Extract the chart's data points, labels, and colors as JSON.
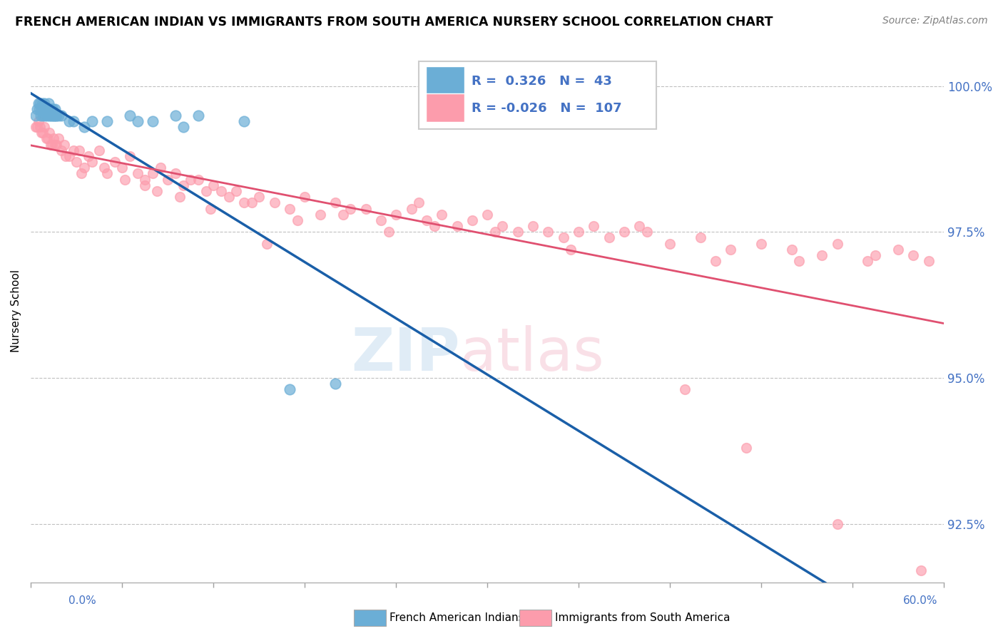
{
  "title": "FRENCH AMERICAN INDIAN VS IMMIGRANTS FROM SOUTH AMERICA NURSERY SCHOOL CORRELATION CHART",
  "source": "Source: ZipAtlas.com",
  "ylabel": "Nursery School",
  "xmin": 0.0,
  "xmax": 60.0,
  "ymin": 91.5,
  "ymax": 100.8,
  "yticks": [
    92.5,
    95.0,
    97.5,
    100.0
  ],
  "ytick_labels": [
    "92.5%",
    "95.0%",
    "97.5%",
    "100.0%"
  ],
  "blue_R": 0.326,
  "blue_N": 43,
  "pink_R": -0.026,
  "pink_N": 107,
  "blue_color": "#6baed6",
  "pink_color": "#fc9cac",
  "blue_line_color": "#1a5fa8",
  "pink_line_color": "#e05070",
  "legend_label_blue": "French American Indians",
  "legend_label_pink": "Immigrants from South America",
  "blue_scatter_x": [
    0.3,
    0.4,
    0.5,
    0.55,
    0.6,
    0.65,
    0.7,
    0.75,
    0.8,
    0.85,
    0.9,
    0.95,
    1.0,
    1.05,
    1.1,
    1.15,
    1.2,
    1.25,
    1.3,
    1.35,
    1.4,
    1.45,
    1.5,
    1.55,
    1.6,
    1.65,
    1.7,
    2.5,
    3.5,
    5.0,
    6.5,
    8.0,
    11.0,
    14.0,
    2.0,
    4.0,
    7.0,
    10.0,
    17.0,
    20.0,
    2.8,
    1.8,
    9.5
  ],
  "blue_scatter_y": [
    99.5,
    99.6,
    99.7,
    99.6,
    99.7,
    99.5,
    99.6,
    99.7,
    99.5,
    99.6,
    99.7,
    99.5,
    99.6,
    99.5,
    99.6,
    99.7,
    99.5,
    99.6,
    99.5,
    99.6,
    99.5,
    99.6,
    99.5,
    99.5,
    99.6,
    99.5,
    99.5,
    99.4,
    99.3,
    99.4,
    99.5,
    99.4,
    99.5,
    99.4,
    99.5,
    99.4,
    99.4,
    99.3,
    94.8,
    94.9,
    99.4,
    99.5,
    99.5
  ],
  "pink_scatter_x": [
    0.3,
    0.5,
    0.7,
    0.9,
    1.0,
    1.2,
    1.4,
    1.5,
    1.7,
    1.8,
    2.0,
    2.2,
    2.5,
    2.8,
    3.0,
    3.2,
    3.5,
    3.8,
    4.0,
    4.5,
    5.0,
    5.5,
    6.0,
    6.5,
    7.0,
    7.5,
    8.0,
    8.5,
    9.0,
    9.5,
    10.0,
    10.5,
    11.0,
    11.5,
    12.0,
    12.5,
    13.0,
    13.5,
    14.0,
    15.0,
    16.0,
    17.0,
    18.0,
    19.0,
    20.0,
    21.0,
    22.0,
    23.0,
    24.0,
    25.0,
    26.0,
    27.0,
    28.0,
    29.0,
    30.0,
    31.0,
    32.0,
    33.0,
    34.0,
    35.0,
    36.0,
    37.0,
    38.0,
    39.0,
    40.0,
    42.0,
    44.0,
    46.0,
    48.0,
    50.0,
    52.0,
    53.0,
    55.0,
    57.0,
    58.0,
    59.0,
    0.4,
    0.6,
    0.8,
    1.1,
    1.3,
    1.6,
    2.3,
    3.3,
    4.8,
    6.2,
    8.3,
    9.8,
    11.8,
    14.5,
    17.5,
    20.5,
    23.5,
    26.5,
    30.5,
    35.5,
    40.5,
    45.0,
    50.5,
    55.5,
    43.0,
    47.0,
    7.5,
    15.5,
    25.5,
    53.0,
    58.5
  ],
  "pink_scatter_y": [
    99.3,
    99.4,
    99.2,
    99.3,
    99.1,
    99.2,
    99.0,
    99.1,
    99.0,
    99.1,
    98.9,
    99.0,
    98.8,
    98.9,
    98.7,
    98.9,
    98.6,
    98.8,
    98.7,
    98.9,
    98.5,
    98.7,
    98.6,
    98.8,
    98.5,
    98.4,
    98.5,
    98.6,
    98.4,
    98.5,
    98.3,
    98.4,
    98.4,
    98.2,
    98.3,
    98.2,
    98.1,
    98.2,
    98.0,
    98.1,
    98.0,
    97.9,
    98.1,
    97.8,
    98.0,
    97.9,
    97.9,
    97.7,
    97.8,
    97.9,
    97.7,
    97.8,
    97.6,
    97.7,
    97.8,
    97.6,
    97.5,
    97.6,
    97.5,
    97.4,
    97.5,
    97.6,
    97.4,
    97.5,
    97.6,
    97.3,
    97.4,
    97.2,
    97.3,
    97.2,
    97.1,
    97.3,
    97.0,
    97.2,
    97.1,
    97.0,
    99.3,
    99.3,
    99.2,
    99.1,
    99.0,
    99.0,
    98.8,
    98.5,
    98.6,
    98.4,
    98.2,
    98.1,
    97.9,
    98.0,
    97.7,
    97.8,
    97.5,
    97.6,
    97.5,
    97.2,
    97.5,
    97.0,
    97.0,
    97.1,
    94.8,
    93.8,
    98.3,
    97.3,
    98.0,
    92.5,
    91.7
  ]
}
